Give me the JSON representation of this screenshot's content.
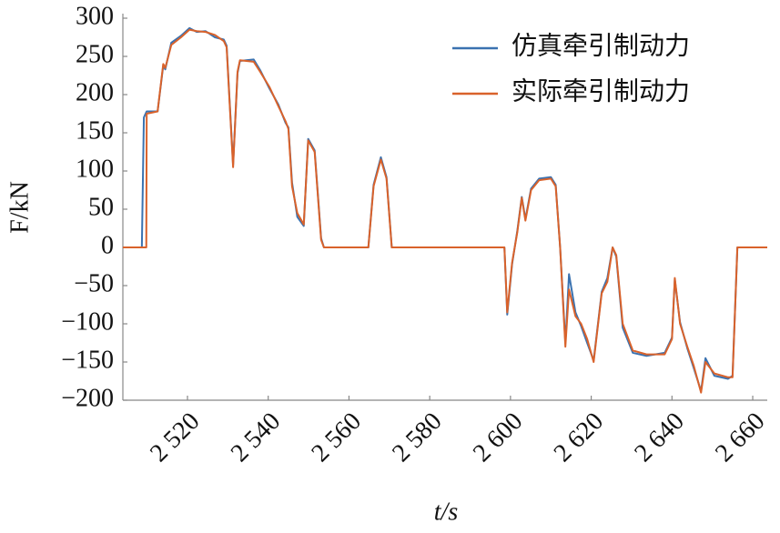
{
  "chart_data": {
    "type": "line",
    "xlabel": "t/s",
    "ylabel": "F/kN",
    "x": [
      2504,
      2508.7,
      2509.2,
      2509.8,
      2509.9,
      2512.6,
      2514,
      2514.5,
      2516,
      2518.4,
      2520.5,
      2522.3,
      2524.5,
      2526.8,
      2529,
      2529.7,
      2531.3,
      2532.4,
      2533,
      2536.4,
      2538,
      2540.3,
      2542.5,
      2544.3,
      2545,
      2545.9,
      2547.2,
      2548.8,
      2549.9,
      2551.5,
      2553.1,
      2553.8,
      2564.8,
      2566.1,
      2567.9,
      2569.3,
      2570.6,
      2598.5,
      2599.2,
      2600.4,
      2601.7,
      2602.8,
      2603.7,
      2605.1,
      2607.1,
      2610,
      2611.2,
      2612.3,
      2613.6,
      2614.5,
      2616.1,
      2617.5,
      2619,
      2620.6,
      2622.6,
      2624,
      2625.3,
      2626.2,
      2627.8,
      2630.3,
      2633.7,
      2638.2,
      2640,
      2640.7,
      2642,
      2643.8,
      2645.4,
      2647.2,
      2648.3,
      2650.5,
      2653.9,
      2655,
      2656.2,
      2663.6
    ],
    "series": [
      {
        "name": "仿真牵引制动力",
        "color": "#3a72b0",
        "values": [
          0,
          0,
          170,
          177,
          178,
          178,
          238,
          233,
          268,
          277,
          287,
          282,
          283,
          275,
          272,
          264,
          108,
          228,
          244,
          246,
          232,
          208,
          187,
          163,
          157,
          85,
          40,
          28,
          142,
          127,
          12,
          0,
          0,
          82,
          118,
          92,
          0,
          0,
          -88,
          -22,
          22,
          66,
          37,
          77,
          90,
          92,
          82,
          0,
          -125,
          -35,
          -85,
          -103,
          -125,
          -148,
          -58,
          -40,
          0,
          -12,
          -105,
          -138,
          -142,
          -138,
          -118,
          -42,
          -98,
          -132,
          -158,
          -188,
          -145,
          -168,
          -172,
          -168,
          0,
          0
        ]
      },
      {
        "name": "实际牵引制动力",
        "color": "#d9622b",
        "values": [
          0,
          0,
          0,
          0,
          175,
          178,
          240,
          235,
          265,
          275,
          285,
          283,
          282,
          278,
          270,
          262,
          105,
          230,
          245,
          243,
          230,
          210,
          185,
          165,
          155,
          80,
          45,
          30,
          140,
          125,
          10,
          0,
          0,
          80,
          115,
          90,
          0,
          0,
          -85,
          -20,
          20,
          65,
          35,
          75,
          88,
          90,
          80,
          0,
          -130,
          -55,
          -90,
          -100,
          -120,
          -150,
          -60,
          -45,
          0,
          -10,
          -100,
          -135,
          -140,
          -140,
          -120,
          -40,
          -100,
          -130,
          -155,
          -190,
          -150,
          -165,
          -170,
          -170,
          0,
          0
        ]
      }
    ],
    "xlim": [
      2504,
      2663.6
    ],
    "xticks": [
      {
        "value": 2520,
        "label": "2 520"
      },
      {
        "value": 2540,
        "label": "2 540"
      },
      {
        "value": 2560,
        "label": "2 560"
      },
      {
        "value": 2580,
        "label": "2 580"
      },
      {
        "value": 2600,
        "label": "2 600"
      },
      {
        "value": 2620,
        "label": "2 620"
      },
      {
        "value": 2640,
        "label": "2 640"
      },
      {
        "value": 2660,
        "label": "2 660"
      }
    ],
    "ylim": [
      -200,
      300
    ],
    "yticks": [
      {
        "value": -200,
        "label": "−200"
      },
      {
        "value": -150,
        "label": "−150"
      },
      {
        "value": -100,
        "label": "−100"
      },
      {
        "value": -50,
        "label": "−50"
      },
      0,
      50,
      100,
      150,
      200,
      250,
      300
    ],
    "legend": "upper right"
  }
}
